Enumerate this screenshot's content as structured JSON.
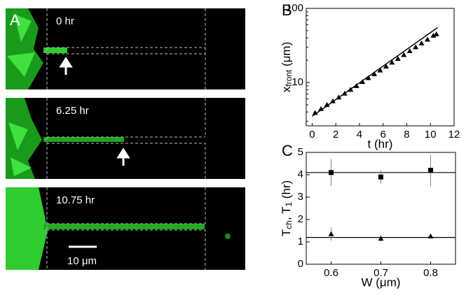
{
  "panels": {
    "A": {
      "label": "A",
      "frames": [
        "0 hr",
        "6.25 hr",
        "10.75 hr"
      ],
      "scale_bar": "10 μm"
    }
  },
  "chart_data": [
    {
      "type": "scatter",
      "label": "B",
      "log_y": true,
      "x_label": "t (hr)",
      "y_label": {
        "main": "x",
        "sub": "front",
        "unit": " (μm)"
      },
      "xlim": [
        -0.5,
        12
      ],
      "ylim": [
        2.6,
        100
      ],
      "xticks": [
        0,
        2,
        4,
        6,
        8,
        10,
        12
      ],
      "yticks": [
        10,
        100
      ],
      "series": [
        {
          "marker": "triangle",
          "color": "#000000",
          "x": [
            0.25,
            0.75,
            1.25,
            1.75,
            2.25,
            2.75,
            3.25,
            3.75,
            4.25,
            4.75,
            5.25,
            5.75,
            6.25,
            6.75,
            7.25,
            7.75,
            8.25,
            8.75,
            9.25,
            9.75,
            10.25,
            10.5
          ],
          "values": [
            3.9,
            4.4,
            5.0,
            5.6,
            6.3,
            7.1,
            8.0,
            9.0,
            10.2,
            11.5,
            13.0,
            14.6,
            16.5,
            18.6,
            20.9,
            23.6,
            26.6,
            30,
            33.8,
            38,
            43,
            45
          ]
        }
      ],
      "fit": {
        "x": [
          0,
          10.6
        ],
        "values": [
          3.5,
          55
        ]
      }
    },
    {
      "type": "scatter",
      "label": "C",
      "log_y": false,
      "x_label": "W (μm)",
      "y_label": {
        "main": "T",
        "sub": "ch",
        "mid": ", T",
        "sub2": "1",
        "unit": " (hr)"
      },
      "xlim": [
        0.55,
        0.85
      ],
      "ylim": [
        0,
        5
      ],
      "xticks": [
        0.6,
        0.7,
        0.8
      ],
      "yticks": [
        0,
        1,
        2,
        3,
        4,
        5
      ],
      "series": [
        {
          "marker": "square",
          "color": "#000000",
          "x": [
            0.6,
            0.7,
            0.8
          ],
          "values": [
            4.1,
            3.9,
            4.2
          ],
          "errors": [
            0.6,
            0.3,
            0.7
          ],
          "fit": 4.1
        },
        {
          "marker": "triangle",
          "color": "#000000",
          "x": [
            0.6,
            0.7,
            0.8
          ],
          "values": [
            1.35,
            1.15,
            1.25
          ],
          "errors": [
            0.3,
            0.15,
            0.1
          ],
          "fit": 1.2
        }
      ]
    }
  ]
}
